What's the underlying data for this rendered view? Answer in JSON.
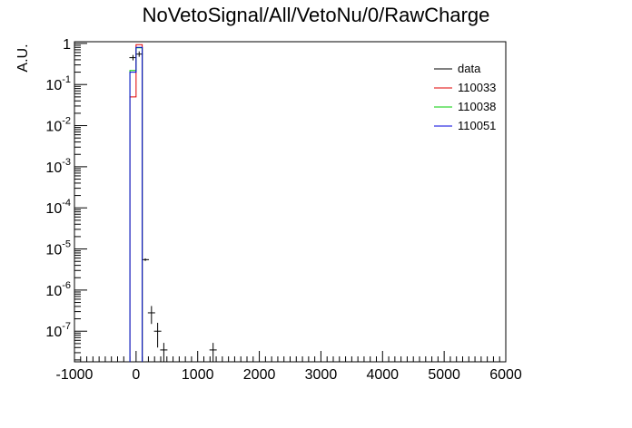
{
  "chart_data": {
    "type": "histogram",
    "title": "NoVetoSignal/All/VetoNu/0/RawCharge",
    "ylabel": "A.U.",
    "xlabel": "",
    "xlim": [
      -1000,
      6000
    ],
    "ylim": [
      1.8e-08,
      1.1
    ],
    "y_scale": "log",
    "grid": false,
    "legend_position": "top-right",
    "x_tick_labels": [
      "-1000",
      "0",
      "1000",
      "2000",
      "3000",
      "4000",
      "5000",
      "6000"
    ],
    "x_ticks": [
      -1000,
      0,
      1000,
      2000,
      3000,
      4000,
      5000,
      6000
    ],
    "y_ticks": [
      {
        "value": 1,
        "base": "1",
        "exp": ""
      },
      {
        "value": 0.1,
        "base": "10",
        "exp": "-1"
      },
      {
        "value": 0.01,
        "base": "10",
        "exp": "-2"
      },
      {
        "value": 0.001,
        "base": "10",
        "exp": "-3"
      },
      {
        "value": 0.0001,
        "base": "10",
        "exp": "-4"
      },
      {
        "value": 1e-05,
        "base": "10",
        "exp": "-5"
      },
      {
        "value": 1e-06,
        "base": "10",
        "exp": "-6"
      },
      {
        "value": 1e-07,
        "base": "10",
        "exp": "-7"
      }
    ],
    "series": [
      {
        "name": "data",
        "color": "#000000",
        "kind": "points",
        "points": [
          {
            "x": -50,
            "y": 0.45
          },
          {
            "x": 50,
            "y": 0.55
          },
          {
            "x": 150,
            "y": 5.5e-06,
            "yerr": 4e-07
          },
          {
            "x": 250,
            "y": 2.8e-07,
            "yerr": 1.3e-07
          },
          {
            "x": 350,
            "y": 1e-07,
            "yerr": 6e-08
          },
          {
            "x": 450,
            "y": 3.5e-08,
            "yerr": 1.7e-08
          },
          {
            "x": 1250,
            "y": 3.5e-08,
            "yerr": 1.7e-08
          }
        ]
      },
      {
        "name": "110033",
        "color": "#e00000",
        "kind": "step",
        "bins": [
          {
            "x0": -100,
            "x1": 0,
            "y": 0.05
          },
          {
            "x0": 0,
            "x1": 100,
            "y": 0.93
          }
        ]
      },
      {
        "name": "110038",
        "color": "#00cc00",
        "kind": "step",
        "bins": [
          {
            "x0": -100,
            "x1": 0,
            "y": 0.22
          },
          {
            "x0": 0,
            "x1": 100,
            "y": 0.78
          }
        ]
      },
      {
        "name": "110051",
        "color": "#0000dd",
        "kind": "step",
        "bins": [
          {
            "x0": -100,
            "x1": 0,
            "y": 0.2
          },
          {
            "x0": 0,
            "x1": 100,
            "y": 0.8
          }
        ]
      }
    ]
  }
}
